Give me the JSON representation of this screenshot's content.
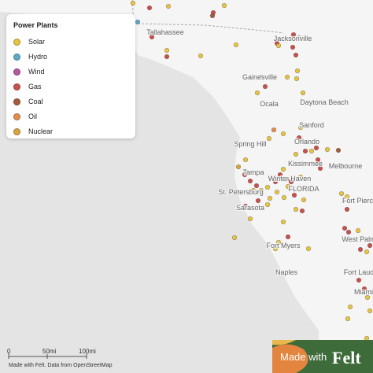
{
  "legend": {
    "title": "Power Plants",
    "items": [
      {
        "label": "Solar",
        "color": "#e6c440"
      },
      {
        "label": "Hydro",
        "color": "#5fa8c8"
      },
      {
        "label": "Wind",
        "color": "#b1599b"
      },
      {
        "label": "Gas",
        "color": "#c9504b"
      },
      {
        "label": "Coal",
        "color": "#a65a3c"
      },
      {
        "label": "Oil",
        "color": "#e38c4c"
      },
      {
        "label": "Nuclear",
        "color": "#d6a543"
      }
    ]
  },
  "map": {
    "cities": [
      "Tallahassee",
      "Jacksonville",
      "Gainesville",
      "Ocala",
      "Daytona Beach",
      "Sanford",
      "Orlando",
      "Spring Hill",
      "Kissimmee",
      "Melbourne",
      "Tampa",
      "Winter Haven",
      "FLORIDA",
      "St. Petersburg",
      "Sarasota",
      "Fort Pierce",
      "West Palm",
      "Fort Myers",
      "Naples",
      "Fort Laud",
      "Miami"
    ]
  },
  "scale": {
    "labels": [
      "0",
      "50mi",
      "100mi"
    ]
  },
  "attribution": "Made with Felt. Data from OpenStreetMap",
  "badge": {
    "prefix": "Made with",
    "brand": "Felt"
  }
}
